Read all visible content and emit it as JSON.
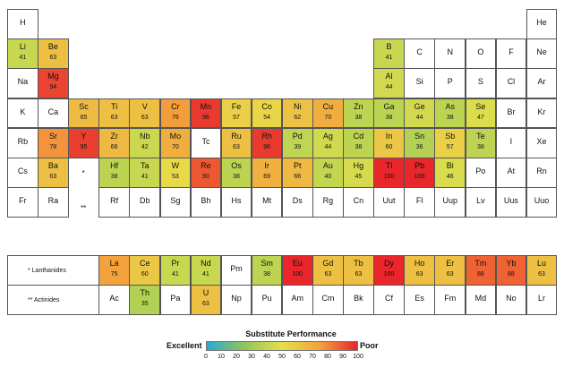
{
  "chart_data": {
    "type": "heatmap",
    "title": "",
    "colorbar": {
      "title": "Substitute Performance",
      "low_label": "Excellent",
      "high_label": "Poor",
      "range": [
        0,
        100
      ],
      "ticks": [
        0,
        10,
        20,
        30,
        40,
        50,
        60,
        70,
        80,
        90,
        100
      ],
      "colors": [
        "#2aa7d6",
        "#8fc65a",
        "#e6e04a",
        "#f4a23e",
        "#e8262b"
      ]
    },
    "markers": {
      "lanthanides": "*",
      "actinides": "**"
    },
    "row_labels": {
      "lanthanides": "* Lanthanides",
      "actinides": "** Actinides"
    },
    "elements": [
      {
        "s": "H",
        "r": 1,
        "c": 1,
        "v": null
      },
      {
        "s": "He",
        "r": 1,
        "c": 18,
        "v": null
      },
      {
        "s": "Li",
        "r": 2,
        "c": 1,
        "v": 41
      },
      {
        "s": "Be",
        "r": 2,
        "c": 2,
        "v": 63
      },
      {
        "s": "B",
        "r": 2,
        "c": 13,
        "v": 41
      },
      {
        "s": "C",
        "r": 2,
        "c": 14,
        "v": null
      },
      {
        "s": "N",
        "r": 2,
        "c": 15,
        "v": null
      },
      {
        "s": "O",
        "r": 2,
        "c": 16,
        "v": null
      },
      {
        "s": "F",
        "r": 2,
        "c": 17,
        "v": null
      },
      {
        "s": "Ne",
        "r": 2,
        "c": 18,
        "v": null
      },
      {
        "s": "Na",
        "r": 3,
        "c": 1,
        "v": null
      },
      {
        "s": "Mg",
        "r": 3,
        "c": 2,
        "v": 94
      },
      {
        "s": "Al",
        "r": 3,
        "c": 13,
        "v": 44
      },
      {
        "s": "Si",
        "r": 3,
        "c": 14,
        "v": null
      },
      {
        "s": "P",
        "r": 3,
        "c": 15,
        "v": null
      },
      {
        "s": "S",
        "r": 3,
        "c": 16,
        "v": null
      },
      {
        "s": "Cl",
        "r": 3,
        "c": 17,
        "v": null
      },
      {
        "s": "Ar",
        "r": 3,
        "c": 18,
        "v": null
      },
      {
        "s": "K",
        "r": 4,
        "c": 1,
        "v": null
      },
      {
        "s": "Ca",
        "r": 4,
        "c": 2,
        "v": null
      },
      {
        "s": "Sc",
        "r": 4,
        "c": 3,
        "v": 65
      },
      {
        "s": "Ti",
        "r": 4,
        "c": 4,
        "v": 63
      },
      {
        "s": "V",
        "r": 4,
        "c": 5,
        "v": 63
      },
      {
        "s": "Cr",
        "r": 4,
        "c": 6,
        "v": 76
      },
      {
        "s": "Mn",
        "r": 4,
        "c": 7,
        "v": 96
      },
      {
        "s": "Fe",
        "r": 4,
        "c": 8,
        "v": 57
      },
      {
        "s": "Co",
        "r": 4,
        "c": 9,
        "v": 54
      },
      {
        "s": "Ni",
        "r": 4,
        "c": 10,
        "v": 62
      },
      {
        "s": "Cu",
        "r": 4,
        "c": 11,
        "v": 70
      },
      {
        "s": "Zn",
        "r": 4,
        "c": 12,
        "v": 38
      },
      {
        "s": "Ga",
        "r": 4,
        "c": 13,
        "v": 38
      },
      {
        "s": "Ge",
        "r": 4,
        "c": 14,
        "v": 44
      },
      {
        "s": "As",
        "r": 4,
        "c": 15,
        "v": 38
      },
      {
        "s": "Se",
        "r": 4,
        "c": 16,
        "v": 47
      },
      {
        "s": "Br",
        "r": 4,
        "c": 17,
        "v": null
      },
      {
        "s": "Kr",
        "r": 4,
        "c": 18,
        "v": null
      },
      {
        "s": "Rb",
        "r": 5,
        "c": 1,
        "v": null
      },
      {
        "s": "Sr",
        "r": 5,
        "c": 2,
        "v": 78
      },
      {
        "s": "Y",
        "r": 5,
        "c": 3,
        "v": 95
      },
      {
        "s": "Zr",
        "r": 5,
        "c": 4,
        "v": 66
      },
      {
        "s": "Nb",
        "r": 5,
        "c": 5,
        "v": 42
      },
      {
        "s": "Mo",
        "r": 5,
        "c": 6,
        "v": 70
      },
      {
        "s": "Tc",
        "r": 5,
        "c": 7,
        "v": null
      },
      {
        "s": "Ru",
        "r": 5,
        "c": 8,
        "v": 63
      },
      {
        "s": "Rh",
        "r": 5,
        "c": 9,
        "v": 96
      },
      {
        "s": "Pd",
        "r": 5,
        "c": 10,
        "v": 39
      },
      {
        "s": "Ag",
        "r": 5,
        "c": 11,
        "v": 44
      },
      {
        "s": "Cd",
        "r": 5,
        "c": 12,
        "v": 38
      },
      {
        "s": "In",
        "r": 5,
        "c": 13,
        "v": 60
      },
      {
        "s": "Sn",
        "r": 5,
        "c": 14,
        "v": 36
      },
      {
        "s": "Sb",
        "r": 5,
        "c": 15,
        "v": 57
      },
      {
        "s": "Te",
        "r": 5,
        "c": 16,
        "v": 38
      },
      {
        "s": "I",
        "r": 5,
        "c": 17,
        "v": null
      },
      {
        "s": "Xe",
        "r": 5,
        "c": 18,
        "v": null
      },
      {
        "s": "Cs",
        "r": 6,
        "c": 1,
        "v": null
      },
      {
        "s": "Ba",
        "r": 6,
        "c": 2,
        "v": 63
      },
      {
        "s": "Hf",
        "r": 6,
        "c": 4,
        "v": 38
      },
      {
        "s": "Ta",
        "r": 6,
        "c": 5,
        "v": 41
      },
      {
        "s": "W",
        "r": 6,
        "c": 6,
        "v": 53
      },
      {
        "s": "Re",
        "r": 6,
        "c": 7,
        "v": 90
      },
      {
        "s": "Os",
        "r": 6,
        "c": 8,
        "v": 38
      },
      {
        "s": "Ir",
        "r": 6,
        "c": 9,
        "v": 69
      },
      {
        "s": "Pt",
        "r": 6,
        "c": 10,
        "v": 66
      },
      {
        "s": "Au",
        "r": 6,
        "c": 11,
        "v": 40
      },
      {
        "s": "Hg",
        "r": 6,
        "c": 12,
        "v": 45
      },
      {
        "s": "Tl",
        "r": 6,
        "c": 13,
        "v": 100
      },
      {
        "s": "Pb",
        "r": 6,
        "c": 14,
        "v": 100
      },
      {
        "s": "Bi",
        "r": 6,
        "c": 15,
        "v": 46
      },
      {
        "s": "Po",
        "r": 6,
        "c": 16,
        "v": null
      },
      {
        "s": "At",
        "r": 6,
        "c": 17,
        "v": null
      },
      {
        "s": "Rn",
        "r": 6,
        "c": 18,
        "v": null
      },
      {
        "s": "Fr",
        "r": 7,
        "c": 1,
        "v": null
      },
      {
        "s": "Ra",
        "r": 7,
        "c": 2,
        "v": null
      },
      {
        "s": "Rf",
        "r": 7,
        "c": 4,
        "v": null
      },
      {
        "s": "Db",
        "r": 7,
        "c": 5,
        "v": null
      },
      {
        "s": "Sg",
        "r": 7,
        "c": 6,
        "v": null
      },
      {
        "s": "Bh",
        "r": 7,
        "c": 7,
        "v": null
      },
      {
        "s": "Hs",
        "r": 7,
        "c": 8,
        "v": null
      },
      {
        "s": "Mt",
        "r": 7,
        "c": 9,
        "v": null
      },
      {
        "s": "Ds",
        "r": 7,
        "c": 10,
        "v": null
      },
      {
        "s": "Rg",
        "r": 7,
        "c": 11,
        "v": null
      },
      {
        "s": "Cn",
        "r": 7,
        "c": 12,
        "v": null
      },
      {
        "s": "Uut",
        "r": 7,
        "c": 13,
        "v": null
      },
      {
        "s": "Fl",
        "r": 7,
        "c": 14,
        "v": null
      },
      {
        "s": "Uup",
        "r": 7,
        "c": 15,
        "v": null
      },
      {
        "s": "Lv",
        "r": 7,
        "c": 16,
        "v": null
      },
      {
        "s": "Uus",
        "r": 7,
        "c": 17,
        "v": null
      },
      {
        "s": "Uuo",
        "r": 7,
        "c": 18,
        "v": null
      },
      {
        "s": "La",
        "r": 8,
        "c": 4,
        "v": 75
      },
      {
        "s": "Ce",
        "r": 8,
        "c": 5,
        "v": 60
      },
      {
        "s": "Pr",
        "r": 8,
        "c": 6,
        "v": 41
      },
      {
        "s": "Nd",
        "r": 8,
        "c": 7,
        "v": 41
      },
      {
        "s": "Pm",
        "r": 8,
        "c": 8,
        "v": null
      },
      {
        "s": "Sm",
        "r": 8,
        "c": 9,
        "v": 38
      },
      {
        "s": "Eu",
        "r": 8,
        "c": 10,
        "v": 100
      },
      {
        "s": "Gd",
        "r": 8,
        "c": 11,
        "v": 63
      },
      {
        "s": "Tb",
        "r": 8,
        "c": 12,
        "v": 63
      },
      {
        "s": "Dy",
        "r": 8,
        "c": 13,
        "v": 100
      },
      {
        "s": "Ho",
        "r": 8,
        "c": 14,
        "v": 63
      },
      {
        "s": "Er",
        "r": 8,
        "c": 15,
        "v": 63
      },
      {
        "s": "Tm",
        "r": 8,
        "c": 16,
        "v": 88
      },
      {
        "s": "Yb",
        "r": 8,
        "c": 17,
        "v": 88
      },
      {
        "s": "Lu",
        "r": 8,
        "c": 18,
        "v": 63
      },
      {
        "s": "Ac",
        "r": 9,
        "c": 4,
        "v": null
      },
      {
        "s": "Th",
        "r": 9,
        "c": 5,
        "v": 35
      },
      {
        "s": "Pa",
        "r": 9,
        "c": 6,
        "v": null
      },
      {
        "s": "U",
        "r": 9,
        "c": 7,
        "v": 63
      },
      {
        "s": "Np",
        "r": 9,
        "c": 8,
        "v": null
      },
      {
        "s": "Pu",
        "r": 9,
        "c": 9,
        "v": null
      },
      {
        "s": "Am",
        "r": 9,
        "c": 10,
        "v": null
      },
      {
        "s": "Cm",
        "r": 9,
        "c": 11,
        "v": null
      },
      {
        "s": "Bk",
        "r": 9,
        "c": 12,
        "v": null
      },
      {
        "s": "Cf",
        "r": 9,
        "c": 13,
        "v": null
      },
      {
        "s": "Es",
        "r": 9,
        "c": 14,
        "v": null
      },
      {
        "s": "Fm",
        "r": 9,
        "c": 15,
        "v": null
      },
      {
        "s": "Md",
        "r": 9,
        "c": 16,
        "v": null
      },
      {
        "s": "No",
        "r": 9,
        "c": 17,
        "v": null
      },
      {
        "s": "Lr",
        "r": 9,
        "c": 18,
        "v": null
      }
    ]
  }
}
